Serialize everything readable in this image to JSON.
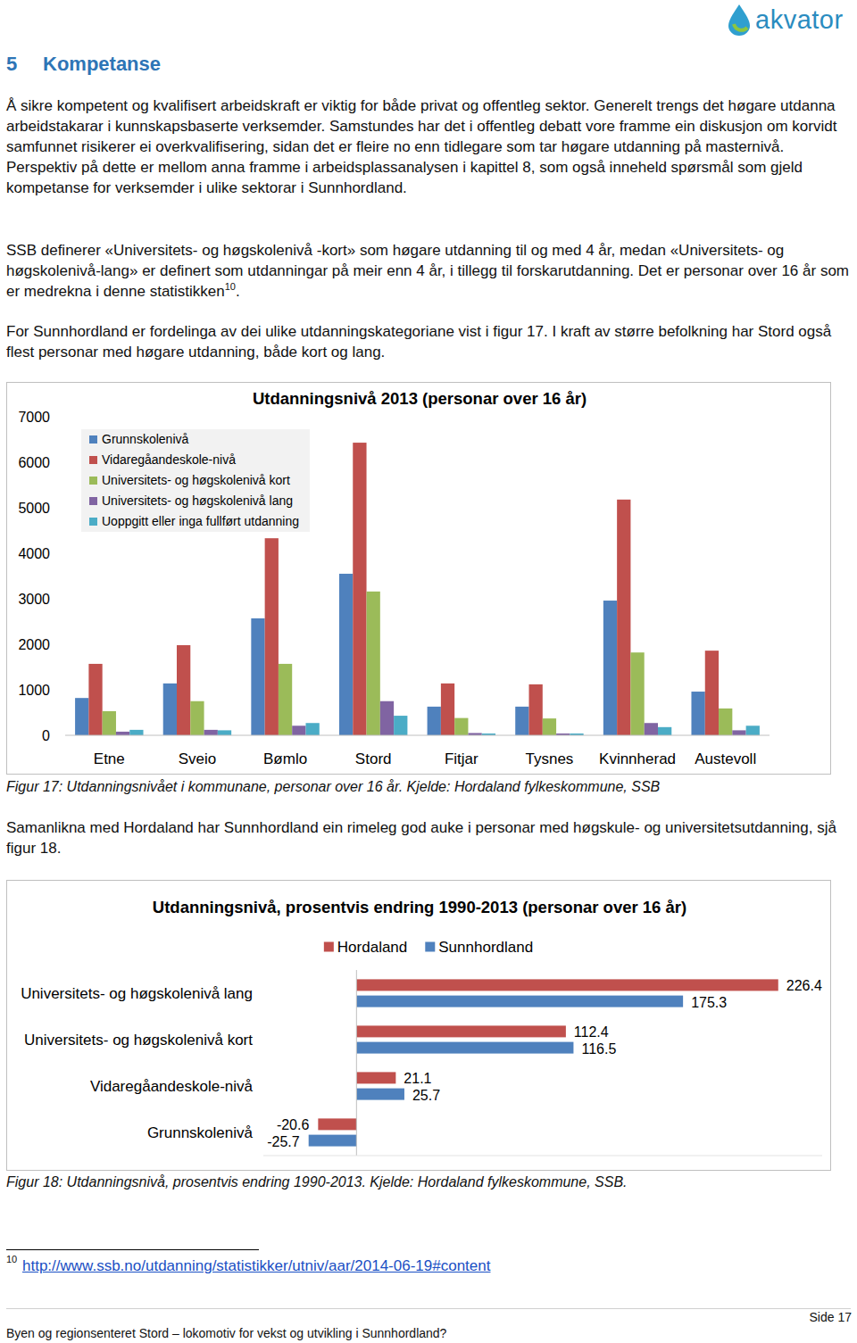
{
  "header": {
    "logo": "akvator"
  },
  "section": {
    "number": "5",
    "title": "Kompetanse"
  },
  "paragraphs": [
    {
      "text": "Å sikre kompetent og kvalifisert arbeidskraft er viktig for både privat og offentleg sektor. Generelt trengs det høgare utdanna arbeidstakarar i kunnskapsbaserte verksemder. Samstundes har det i offentleg debatt vore framme ein diskusjon om korvidt samfunnet risikerer ei overkvalifisering, sidan det er fleire no enn tidlegare som tar høgare utdanning på masternivå. Perspektiv på dette er mellom anna framme i arbeidsplassanalysen i kapittel 8, som også inneheld spørsmål som gjeld kompetanse for verksemder i ulike sektorar i Sunnhordland."
    },
    {
      "text": "SSB definerer «Universitets- og høgskolenivå -kort» som høgare utdanning til og med 4 år, medan «Universitets- og høgskolenivå-lang» er definert som utdanningar på meir enn 4 år, i tillegg til forskarutdanning. Det er personar over 16 år som er medrekna i denne statistikken",
      "footnote_ref": "10",
      "after": "."
    },
    {
      "text": "For Sunnhordland er fordelinga av dei ulike utdanningskategoriane vist i figur 17. I kraft av større befolkning har Stord også flest personar med høgare utdanning, både kort og lang."
    },
    {
      "text": "Samanlikna med Hordaland har Sunnhordland ein rimeleg god auke i personar med høgskule- og universitetsutdanning, sjå figur 18."
    }
  ],
  "figures": [
    {
      "caption": "Figur 17: Utdanningsnivået i kommunane, personar over 16 år. Kjelde: Hordaland fylkeskommune, SSB"
    },
    {
      "caption": "Figur 18: Utdanningsnivå, prosentvis endring 1990-2013. Kjelde: Hordaland fylkeskommune, SSB."
    }
  ],
  "chart_data": [
    {
      "type": "bar",
      "title": "Utdanningsnivå 2013 (personar over 16 år)",
      "categories": [
        "Etne",
        "Sveio",
        "Bømlo",
        "Stord",
        "Fitjar",
        "Tysnes",
        "Kvinnherad",
        "Austevoll"
      ],
      "series": [
        {
          "name": "Grunnskolenivå",
          "color": "#4f81bd",
          "values": [
            820,
            1140,
            2570,
            3550,
            630,
            630,
            2960,
            960
          ]
        },
        {
          "name": "Vidaregåandeskole-nivå",
          "color": "#c0504d",
          "values": [
            1570,
            1980,
            4330,
            6430,
            1140,
            1120,
            5180,
            1860
          ]
        },
        {
          "name": "Universitets- og høgskolenivå kort",
          "color": "#9bbb59",
          "values": [
            530,
            750,
            1570,
            3160,
            380,
            370,
            1820,
            590
          ]
        },
        {
          "name": "Universitets- og høgskolenivå lang",
          "color": "#8064a2",
          "values": [
            80,
            120,
            210,
            750,
            50,
            40,
            270,
            110
          ]
        },
        {
          "name": "Uoppgitt eller inga fullført utdanning",
          "color": "#4bacc6",
          "values": [
            120,
            110,
            270,
            430,
            40,
            40,
            180,
            210
          ]
        }
      ],
      "ylim": [
        0,
        7000
      ],
      "yticks": [
        0,
        1000,
        2000,
        3000,
        4000,
        5000,
        6000,
        7000
      ],
      "grid": false,
      "legend": "top-left"
    },
    {
      "type": "bar",
      "orientation": "horizontal",
      "title": "Utdanningsnivå, prosentvis endring 1990-2013 (personar over 16 år)",
      "categories": [
        "Universitets- og høgskolenivå lang",
        "Universitets- og høgskolenivå kort",
        "Vidaregåandeskole-nivå",
        "Grunnskolenivå"
      ],
      "series": [
        {
          "name": "Hordaland",
          "color": "#c0504d",
          "values": [
            226.4,
            112.4,
            21.1,
            -20.6
          ]
        },
        {
          "name": "Sunnhordland",
          "color": "#4f81bd",
          "values": [
            175.3,
            116.5,
            25.7,
            -25.7
          ]
        }
      ],
      "xlim": [
        -50,
        250
      ],
      "data_labels": true,
      "tick_labels": "y",
      "grid": false,
      "legend": "top"
    }
  ],
  "footnote": {
    "number": "10",
    "link": "http://www.ssb.no/utdanning/statistikker/utniv/aar/2014-06-19#content"
  },
  "footer": {
    "text": "Byen og regionsenteret Stord – lokomotiv for vekst og utvikling i Sunnhordland?",
    "page": "Side 17"
  }
}
